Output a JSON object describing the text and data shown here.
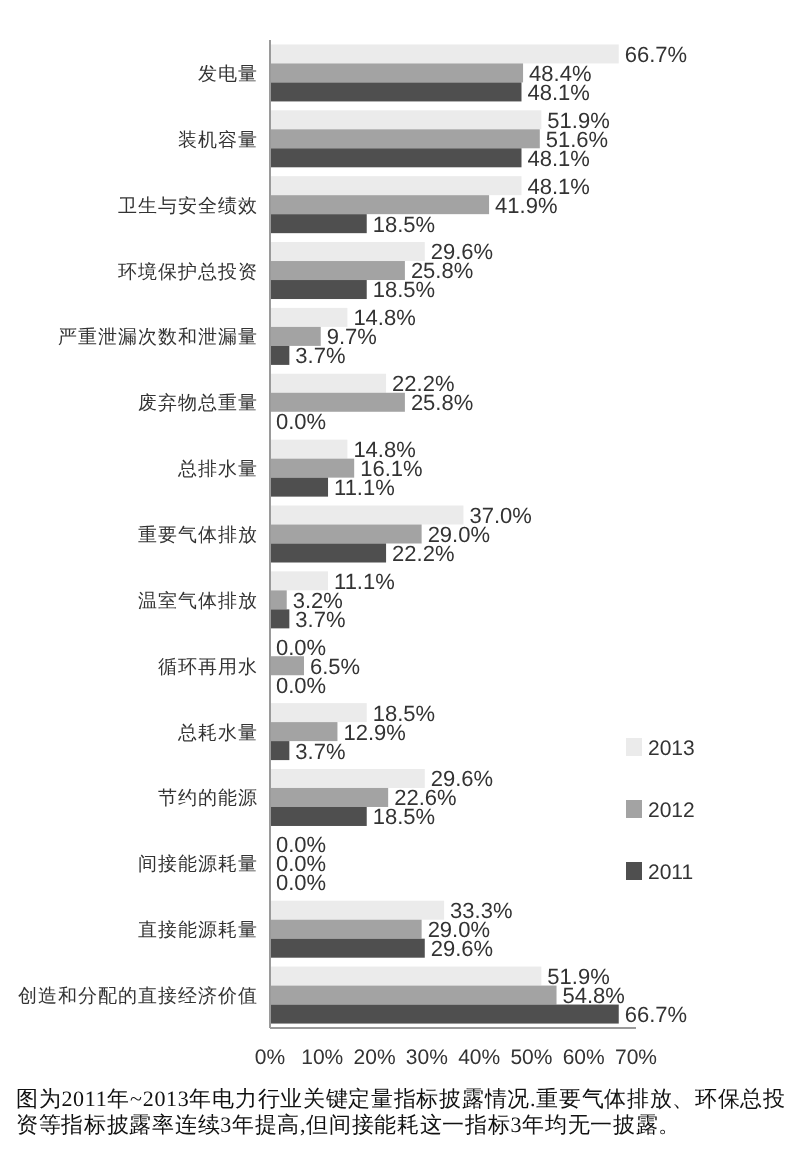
{
  "chart_data": {
    "type": "bar",
    "orientation": "horizontal",
    "categories": [
      "发电量",
      "装机容量",
      "卫生与安全绩效",
      "环境保护总投资",
      "严重泄漏次数和泄漏量",
      "废弃物总重量",
      "总排水量",
      "重要气体排放",
      "温室气体排放",
      "循环再用水",
      "总耗水量",
      "节约的能源",
      "间接能源耗量",
      "直接能源耗量",
      "创造和分配的直接经济价值"
    ],
    "series": [
      {
        "name": "2013",
        "color": "#ebebeb",
        "values": [
          66.7,
          51.9,
          48.1,
          29.6,
          14.8,
          22.2,
          14.8,
          37.0,
          11.1,
          0.0,
          18.5,
          29.6,
          0.0,
          33.3,
          51.9
        ],
        "value_labels": [
          "66.7%",
          "51.9%",
          "48.1%",
          "29.6%",
          "14.8%",
          "22.2%",
          "14.8%",
          "37.0%",
          "11.1%",
          "0.0%",
          "18.5%",
          "29.6%",
          "0.0%",
          "33.3%",
          "51.9%"
        ]
      },
      {
        "name": "2012",
        "color": "#a3a3a3",
        "values": [
          48.4,
          51.6,
          41.9,
          25.8,
          9.7,
          25.8,
          16.1,
          29.0,
          3.2,
          6.5,
          12.9,
          22.6,
          0.0,
          29.0,
          54.8
        ],
        "value_labels": [
          "48.4%",
          "51.6%",
          "41.9%",
          "25.8%",
          "9.7%",
          "25.8%",
          "16.1%",
          "29.0%",
          "3.2%",
          "6.5%",
          "12.9%",
          "22.6%",
          "0.0%",
          "29.0%",
          "54.8%"
        ]
      },
      {
        "name": "2011",
        "color": "#4f4f4f",
        "values": [
          48.1,
          48.1,
          18.5,
          18.5,
          3.7,
          0.0,
          11.1,
          22.2,
          3.7,
          0.0,
          3.7,
          18.5,
          0.0,
          29.6,
          66.7
        ],
        "value_labels": [
          "48.1%",
          "48.1%",
          "18.5%",
          "18.5%",
          "3.7%",
          "0.0%",
          "11.1%",
          "22.2%",
          "3.7%",
          "0.0%",
          "3.7%",
          "18.5%",
          "0.0%",
          "29.6%",
          "66.7%"
        ]
      }
    ],
    "xlim": [
      0,
      70
    ],
    "xticks": [
      {
        "value": 0,
        "label": "0%"
      },
      {
        "value": 10,
        "label": "10%"
      },
      {
        "value": 20,
        "label": "20%"
      },
      {
        "value": 30,
        "label": "30%"
      },
      {
        "value": 40,
        "label": "40%"
      },
      {
        "value": 50,
        "label": "50%"
      },
      {
        "value": 60,
        "label": "60%"
      },
      {
        "value": 70,
        "label": "70%"
      }
    ],
    "legend": "right",
    "annotations": [
      "图为2011年~2013年电力行业关键定量指标披露情况.重要气体排放、环保总投资等指标披露率连续3年提高,但间接能耗这一指标3年均无一披露。"
    ]
  }
}
